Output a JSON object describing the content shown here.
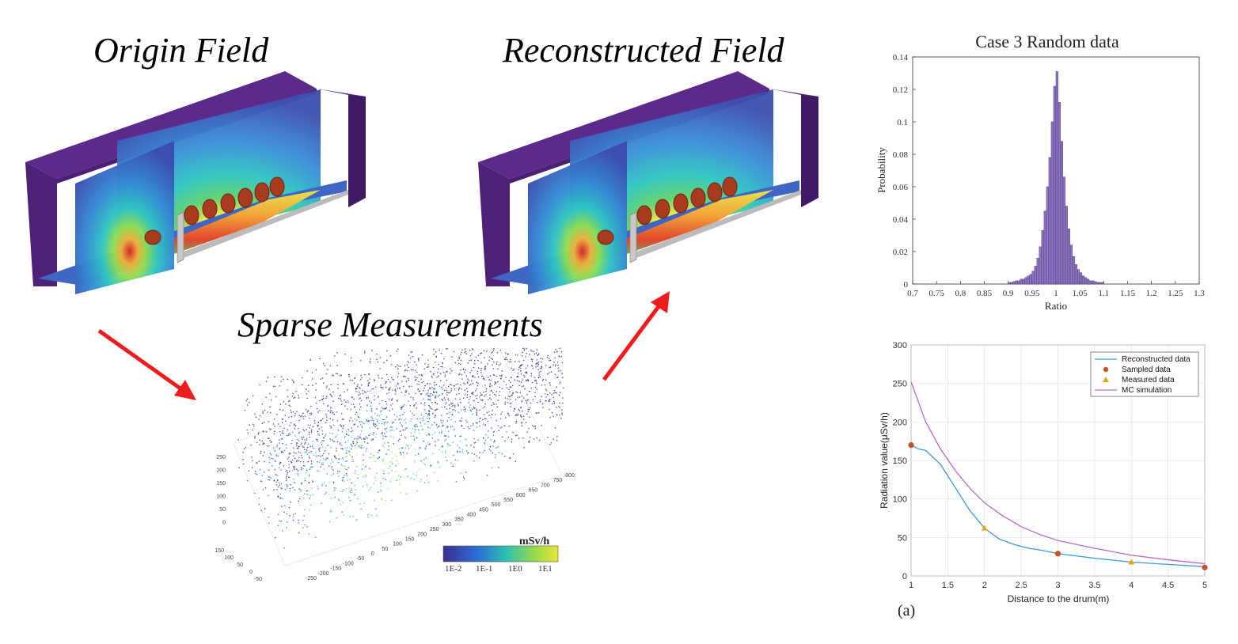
{
  "titles": {
    "origin": "Origin Field",
    "reconstructed": "Reconstructed Field",
    "sparse": "Sparse Measurements"
  },
  "colorbar": {
    "unit": "mSv/h",
    "ticks": [
      "1E-2",
      "1E-1",
      "1E0",
      "1E1"
    ],
    "colors": [
      "#3b2f8f",
      "#2b6fd6",
      "#2fc1b0",
      "#9ad94b",
      "#e8e63a"
    ]
  },
  "scatter_axes": {
    "z_ticks": [
      "250",
      "200",
      "150",
      "100",
      "50",
      "0"
    ],
    "y_ticks": [
      "150",
      "100",
      "50",
      "0",
      "-50"
    ],
    "x_ticks": [
      "-250",
      "-200",
      "-150",
      "-100",
      "-50",
      "0",
      "50",
      "100",
      "150",
      "200",
      "250",
      "300",
      "350",
      "400",
      "450",
      "500",
      "550",
      "600",
      "650",
      "700",
      "750",
      "800"
    ]
  },
  "panel_label": "(a)",
  "chart_data": [
    {
      "type": "bar",
      "title": "Case 3 Random data",
      "xlabel": "Ratio",
      "ylabel": "Probability",
      "xlim": [
        0.7,
        1.3
      ],
      "ylim": [
        0,
        0.14
      ],
      "x_ticks": [
        "0.7",
        "0.75",
        "0.8",
        "0.85",
        "0.9",
        "0.95",
        "1",
        "1.05",
        "1.1",
        "1.15",
        "1.2",
        "1.25",
        "1.3"
      ],
      "y_ticks": [
        "0",
        "0.02",
        "0.04",
        "0.06",
        "0.08",
        "0.1",
        "0.12",
        "0.14"
      ],
      "bin_width": 0.005,
      "bins": [
        0.9,
        0.905,
        0.91,
        0.915,
        0.92,
        0.925,
        0.93,
        0.935,
        0.94,
        0.945,
        0.95,
        0.955,
        0.96,
        0.965,
        0.97,
        0.975,
        0.98,
        0.985,
        0.99,
        0.995,
        1.0,
        1.005,
        1.01,
        1.015,
        1.02,
        1.025,
        1.03,
        1.035,
        1.04,
        1.045,
        1.05,
        1.055,
        1.06,
        1.065,
        1.07,
        1.075,
        1.08,
        1.085,
        1.09,
        1.095
      ],
      "values": [
        0.001,
        0.001,
        0.0015,
        0.002,
        0.002,
        0.003,
        0.003,
        0.004,
        0.005,
        0.006,
        0.008,
        0.011,
        0.016,
        0.023,
        0.033,
        0.045,
        0.06,
        0.078,
        0.1,
        0.122,
        0.131,
        0.112,
        0.088,
        0.066,
        0.048,
        0.034,
        0.024,
        0.017,
        0.012,
        0.009,
        0.007,
        0.005,
        0.004,
        0.003,
        0.002,
        0.002,
        0.0015,
        0.001,
        0.001,
        0.001
      ],
      "color": "#8f76c4"
    },
    {
      "type": "line",
      "xlabel": "Distance to the drum(m)",
      "ylabel": "Radiation value(μSv/h)",
      "xlim": [
        1,
        5
      ],
      "ylim": [
        0,
        300
      ],
      "grid": true,
      "legend": "top-right",
      "x_ticks": [
        "1",
        "1.5",
        "2",
        "2.5",
        "3",
        "3.5",
        "4",
        "4.5",
        "5"
      ],
      "y_ticks": [
        "0",
        "50",
        "100",
        "150",
        "200",
        "250",
        "300"
      ],
      "series": [
        {
          "name": "Reconstructed data",
          "kind": "line",
          "color": "#3a9ad9",
          "x": [
            1,
            1.1,
            1.2,
            1.4,
            1.6,
            1.8,
            2,
            2.2,
            2.4,
            2.6,
            2.8,
            3,
            3.5,
            4,
            4.5,
            5
          ],
          "y": [
            170,
            165,
            163,
            145,
            115,
            85,
            62,
            48,
            41,
            36,
            33,
            29,
            23,
            18,
            15,
            12
          ]
        },
        {
          "name": "Sampled data",
          "kind": "marker-circle",
          "color": "#c8512a",
          "x": [
            1,
            3,
            5
          ],
          "y": [
            170,
            29,
            11
          ]
        },
        {
          "name": "Measured data",
          "kind": "marker-triangle",
          "color": "#e8a51a",
          "x": [
            2,
            4
          ],
          "y": [
            62,
            18
          ]
        },
        {
          "name": "MC simulation",
          "kind": "line",
          "color": "#b86ac7",
          "x": [
            1,
            1.2,
            1.4,
            1.6,
            1.8,
            2,
            2.25,
            2.5,
            2.75,
            3,
            3.5,
            4,
            4.5,
            5
          ],
          "y": [
            252,
            200,
            165,
            137,
            114,
            95,
            78,
            64,
            54,
            46,
            36,
            27,
            21,
            16
          ]
        }
      ]
    }
  ]
}
